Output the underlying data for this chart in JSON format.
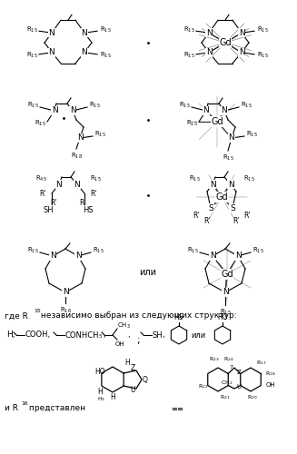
{
  "background_color": "#ffffff",
  "figsize": [
    3.27,
    5.0
  ],
  "dpi": 100,
  "text_where": "где R",
  "text_15sup": "15",
  "text_mid": " независимо выбран из следующих структур:",
  "text_and": "и R",
  "text_16sup": "16",
  "text_rep": " представлен",
  "text_ili": "или",
  "dot_color": "#555555"
}
